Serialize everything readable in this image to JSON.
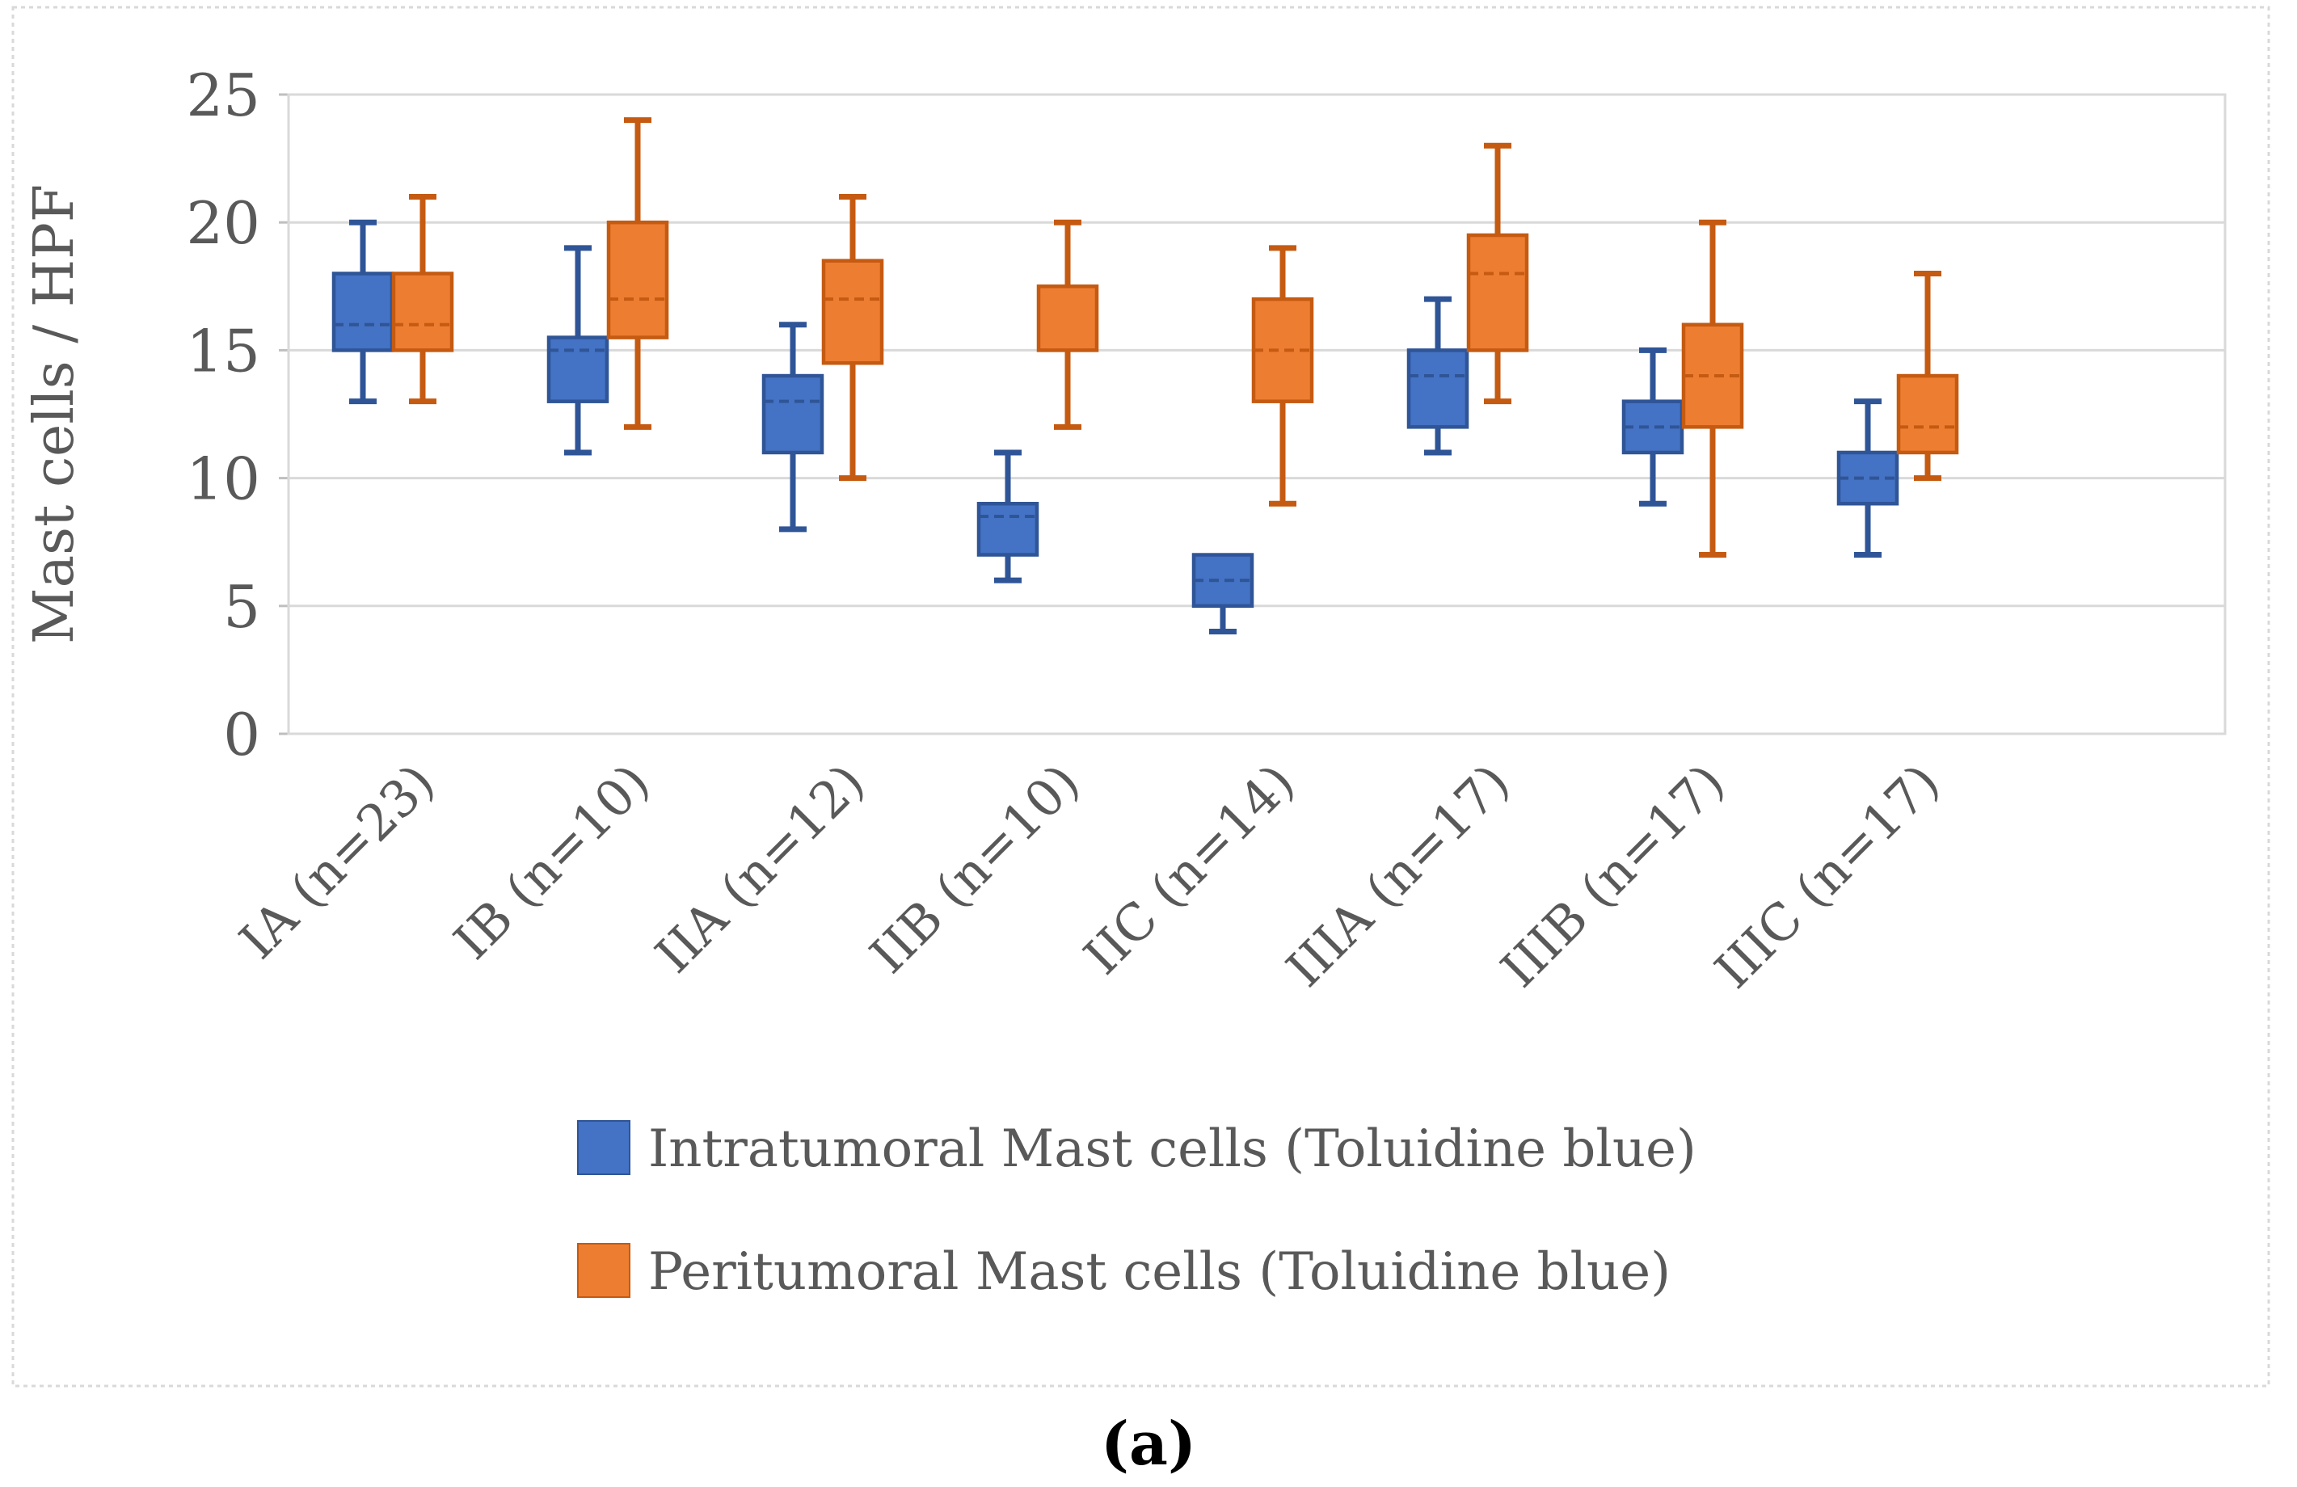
{
  "figure": {
    "caption": "(a)"
  },
  "colors": {
    "intratumoral_fill": "#4472C4",
    "intratumoral_border": "#2F5597",
    "peritumoral_fill": "#ED7D31",
    "peritumoral_border": "#C55A11",
    "gridline": "#D9D9D9",
    "axis_text": "#595959",
    "figure_border": "#D9D9D9",
    "caption_text": "#000000"
  },
  "chart_data": {
    "type": "boxplot",
    "title": "",
    "xlabel": "",
    "ylabel": "Mast cells / HPF",
    "ylim": [
      0,
      25
    ],
    "yticks": [
      0,
      5,
      10,
      15,
      20,
      25
    ],
    "grid": true,
    "legend_position": "bottom",
    "categories": [
      "IA (n=23)",
      "IB (n=10)",
      "IIA (n=12)",
      "IIB (n=10)",
      "IIC (n=14)",
      "IIIA (n=17)",
      "IIIB (n=17)",
      "IIIC (n=17)"
    ],
    "series": [
      {
        "name": "Intratumoral Mast cells (Toluidine blue)",
        "color": "#4472C4",
        "border": "#2F5597",
        "boxes": [
          {
            "min": 13,
            "q1": 15,
            "median": 16,
            "q3": 18,
            "max": 20
          },
          {
            "min": 11,
            "q1": 13,
            "median": 15,
            "q3": 15.5,
            "max": 19
          },
          {
            "min": 8,
            "q1": 11,
            "median": 13,
            "q3": 14,
            "max": 16
          },
          {
            "min": 6,
            "q1": 7,
            "median": 8.5,
            "q3": 9,
            "max": 11
          },
          {
            "min": 4,
            "q1": 5,
            "median": 6,
            "q3": 7,
            "max": 7
          },
          {
            "min": 11,
            "q1": 12,
            "median": 14,
            "q3": 15,
            "max": 17
          },
          {
            "min": 9,
            "q1": 11,
            "median": 12,
            "q3": 13,
            "max": 15
          },
          {
            "min": 7,
            "q1": 9,
            "median": 10,
            "q3": 11,
            "max": 13
          }
        ]
      },
      {
        "name": "Peritumoral Mast cells (Toluidine blue)",
        "color": "#ED7D31",
        "border": "#C55A11",
        "boxes": [
          {
            "min": 13,
            "q1": 15,
            "median": 16,
            "q3": 18,
            "max": 21
          },
          {
            "min": 12,
            "q1": 15.5,
            "median": 17,
            "q3": 20,
            "max": 24
          },
          {
            "min": 10,
            "q1": 14.5,
            "median": 17,
            "q3": 18.5,
            "max": 21
          },
          {
            "min": 12,
            "q1": 15,
            "median": 15,
            "q3": 17.5,
            "max": 20
          },
          {
            "min": 9,
            "q1": 13,
            "median": 15,
            "q3": 17,
            "max": 19
          },
          {
            "min": 13,
            "q1": 15,
            "median": 18,
            "q3": 19.5,
            "max": 23
          },
          {
            "min": 7,
            "q1": 12,
            "median": 14,
            "q3": 16,
            "max": 20
          },
          {
            "min": 10,
            "q1": 11,
            "median": 12,
            "q3": 14,
            "max": 18
          }
        ]
      }
    ]
  }
}
